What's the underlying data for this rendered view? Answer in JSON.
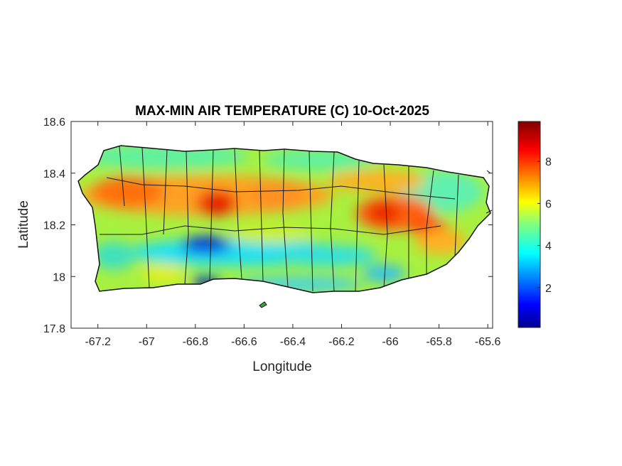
{
  "chart_data": {
    "type": "heatmap",
    "title": "MAX-MIN AIR TEMPERATURE (C) 10-Oct-2025",
    "xlabel": "Longitude",
    "ylabel": "Latitude",
    "xlim": [
      -67.31,
      -65.58
    ],
    "ylim": [
      17.8,
      18.6
    ],
    "xticks": [
      -67.2,
      -67,
      -66.8,
      -66.6,
      -66.4,
      -66.2,
      -66,
      -65.8,
      -65.6
    ],
    "xtick_labels": [
      "-67.2",
      "-67",
      "-66.8",
      "-66.6",
      "-66.4",
      "-66.2",
      "-66",
      "-65.8",
      "-65.6"
    ],
    "yticks": [
      17.8,
      18,
      18.2,
      18.4,
      18.6
    ],
    "ytick_labels": [
      "17.8",
      "18",
      "18.2",
      "18.4",
      "18.6"
    ],
    "colorbar": {
      "colormap": "jet",
      "range": [
        0.1,
        9.9
      ],
      "ticks": [
        2,
        4,
        6,
        8
      ],
      "tick_labels": [
        "2",
        "4",
        "6",
        "8"
      ]
    },
    "hotspots": [
      {
        "lon": -66.7,
        "lat": 18.28,
        "value": 9
      },
      {
        "lon": -66.03,
        "lat": 18.24,
        "value": 8.5
      },
      {
        "lon": -65.85,
        "lat": 18.2,
        "value": 8
      },
      {
        "lon": -67.1,
        "lat": 18.34,
        "value": 7.5
      }
    ],
    "coldspots": [
      {
        "lon": -66.77,
        "lat": 18.13,
        "value": 1
      },
      {
        "lon": -66.78,
        "lat": 17.98,
        "value": 1
      }
    ]
  }
}
